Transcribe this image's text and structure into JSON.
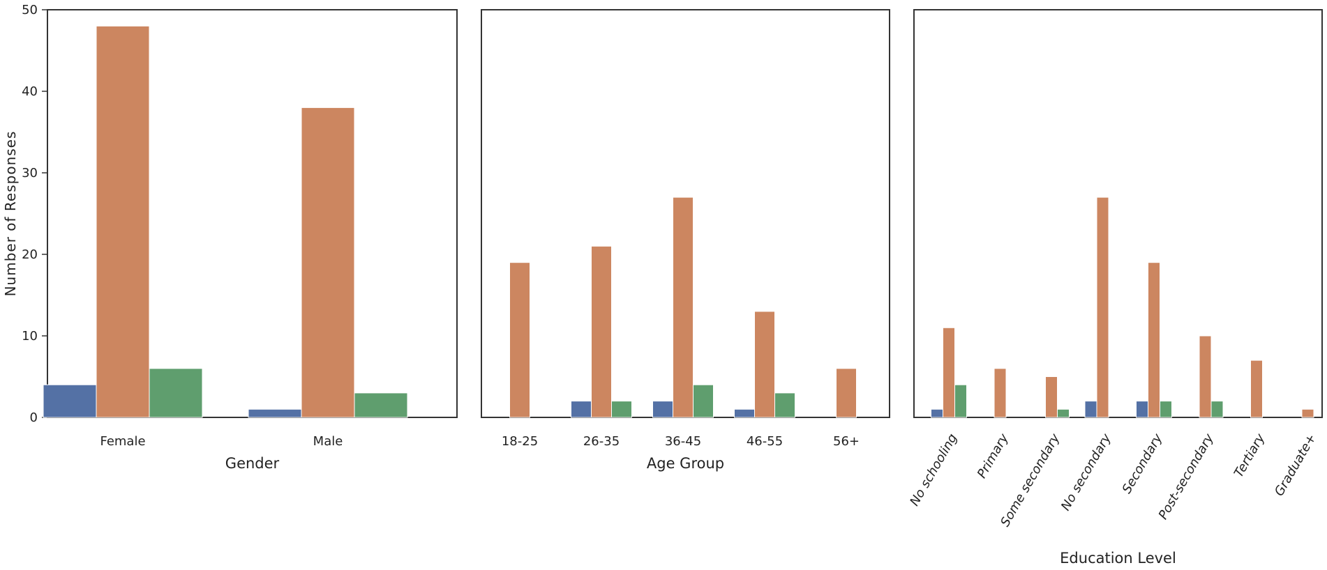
{
  "figure": {
    "ylabel": "Number of Responses",
    "y_ticks": [
      "0",
      "10",
      "20",
      "30",
      "40",
      "50"
    ]
  },
  "colors": {
    "series_1": "#5471a5",
    "series_2": "#cc8660",
    "series_3": "#5f9e6e",
    "axes": "#333333"
  },
  "chart_data": [
    {
      "type": "bar",
      "xlabel": "Gender",
      "ylabel": "Number of Responses",
      "ylim": [
        0,
        50
      ],
      "categories": [
        "Female",
        "Male"
      ],
      "series": [
        {
          "values": [
            4,
            1
          ]
        },
        {
          "values": [
            48,
            38
          ]
        },
        {
          "values": [
            6,
            3
          ]
        }
      ]
    },
    {
      "type": "bar",
      "xlabel": "Age Group",
      "ylim": [
        0,
        50
      ],
      "categories": [
        "18-25",
        "26-35",
        "36-45",
        "46-55",
        "56+"
      ],
      "series": [
        {
          "values": [
            0,
            2,
            2,
            1,
            0
          ]
        },
        {
          "values": [
            19,
            21,
            27,
            13,
            6
          ]
        },
        {
          "values": [
            0,
            2,
            4,
            3,
            0
          ]
        }
      ]
    },
    {
      "type": "bar",
      "xlabel": "Education Level",
      "ylim": [
        0,
        50
      ],
      "categories": [
        "No schooling",
        "Primary",
        "Some secondary",
        "No secondary",
        "Secondary",
        "Post-secondary",
        "Tertiary",
        "Graduate+"
      ],
      "series": [
        {
          "values": [
            1,
            0,
            0,
            2,
            2,
            0,
            0,
            0
          ]
        },
        {
          "values": [
            11,
            6,
            5,
            27,
            19,
            10,
            7,
            1
          ]
        },
        {
          "values": [
            4,
            0,
            1,
            0,
            2,
            2,
            0,
            0
          ]
        }
      ]
    }
  ]
}
